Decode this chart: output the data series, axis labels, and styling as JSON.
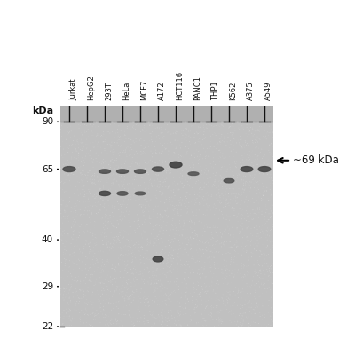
{
  "fig_bg": "#ffffff",
  "gel_bg": "#c0c0c0",
  "lane_labels": [
    "Jurkat",
    "HepG2",
    "293T",
    "HeLa",
    "MCF7",
    "A172",
    "HCT116",
    "PANC1",
    "THP1",
    "K562",
    "A375",
    "A549"
  ],
  "kda_label": "kDa",
  "mw_marks": [
    90,
    65,
    40,
    29,
    22
  ],
  "arrow_label": "~69 kDa",
  "kda_log_min": 22,
  "kda_log_max": 100,
  "bands": [
    {
      "lane": 0,
      "kda": 65,
      "bw": 0.7,
      "bh": 8,
      "darkness": 0.45
    },
    {
      "lane": 2,
      "kda": 64,
      "bw": 0.65,
      "bh": 6,
      "darkness": 0.42
    },
    {
      "lane": 2,
      "kda": 55,
      "bw": 0.65,
      "bh": 7,
      "darkness": 0.5
    },
    {
      "lane": 3,
      "kda": 64,
      "bw": 0.65,
      "bh": 6,
      "darkness": 0.42
    },
    {
      "lane": 3,
      "kda": 55,
      "bw": 0.6,
      "bh": 6,
      "darkness": 0.4
    },
    {
      "lane": 4,
      "kda": 64,
      "bw": 0.65,
      "bh": 6,
      "darkness": 0.42
    },
    {
      "lane": 4,
      "kda": 55,
      "bw": 0.58,
      "bh": 5,
      "darkness": 0.38
    },
    {
      "lane": 5,
      "kda": 65,
      "bw": 0.65,
      "bh": 7,
      "darkness": 0.45
    },
    {
      "lane": 5,
      "kda": 35,
      "bw": 0.58,
      "bh": 8,
      "darkness": 0.52
    },
    {
      "lane": 6,
      "kda": 67,
      "bw": 0.7,
      "bh": 9,
      "darkness": 0.55
    },
    {
      "lane": 7,
      "kda": 63,
      "bw": 0.6,
      "bh": 5,
      "darkness": 0.38
    },
    {
      "lane": 9,
      "kda": 60,
      "bw": 0.58,
      "bh": 6,
      "darkness": 0.42
    },
    {
      "lane": 10,
      "kda": 65,
      "bw": 0.68,
      "bh": 8,
      "darkness": 0.5
    },
    {
      "lane": 11,
      "kda": 65,
      "bw": 0.68,
      "bh": 8,
      "darkness": 0.5
    }
  ],
  "n_lanes": 12,
  "label_strip_color": "#ffffff",
  "dashed_line_color": "#333333",
  "tick_color": "#222222"
}
